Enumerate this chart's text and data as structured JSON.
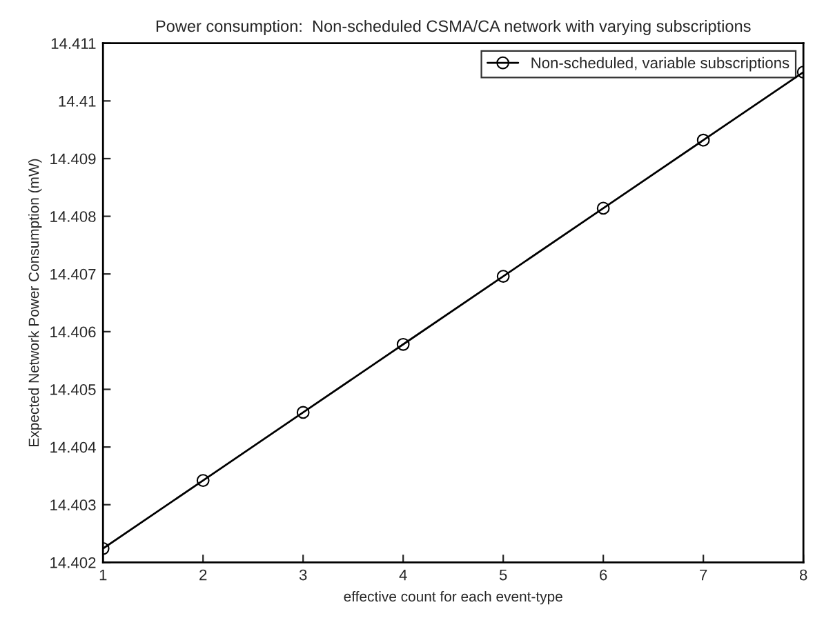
{
  "chart_data": {
    "type": "line",
    "title": "Power consumption:  Non-scheduled CSMA/CA network with varying subscriptions",
    "xlabel": "effective count for each event-type",
    "ylabel": "Expected Network Power Consumption (mW)",
    "x": [
      1,
      2,
      3,
      4,
      5,
      6,
      7,
      8
    ],
    "series": [
      {
        "name": "Non-scheduled, variable subscriptions",
        "color": "#000000",
        "values": [
          14.40224,
          14.40342,
          14.4046,
          14.40578,
          14.40696,
          14.40814,
          14.40932,
          14.4105
        ]
      }
    ],
    "xlim": [
      1,
      8
    ],
    "ylim": [
      14.402,
      14.411
    ],
    "xticks": [
      1,
      2,
      3,
      4,
      5,
      6,
      7,
      8
    ],
    "yticks": [
      14.402,
      14.403,
      14.404,
      14.405,
      14.406,
      14.407,
      14.408,
      14.409,
      14.41,
      14.411
    ],
    "marker": "circle",
    "line_style": "solid",
    "legend": "top right",
    "grid": false
  }
}
